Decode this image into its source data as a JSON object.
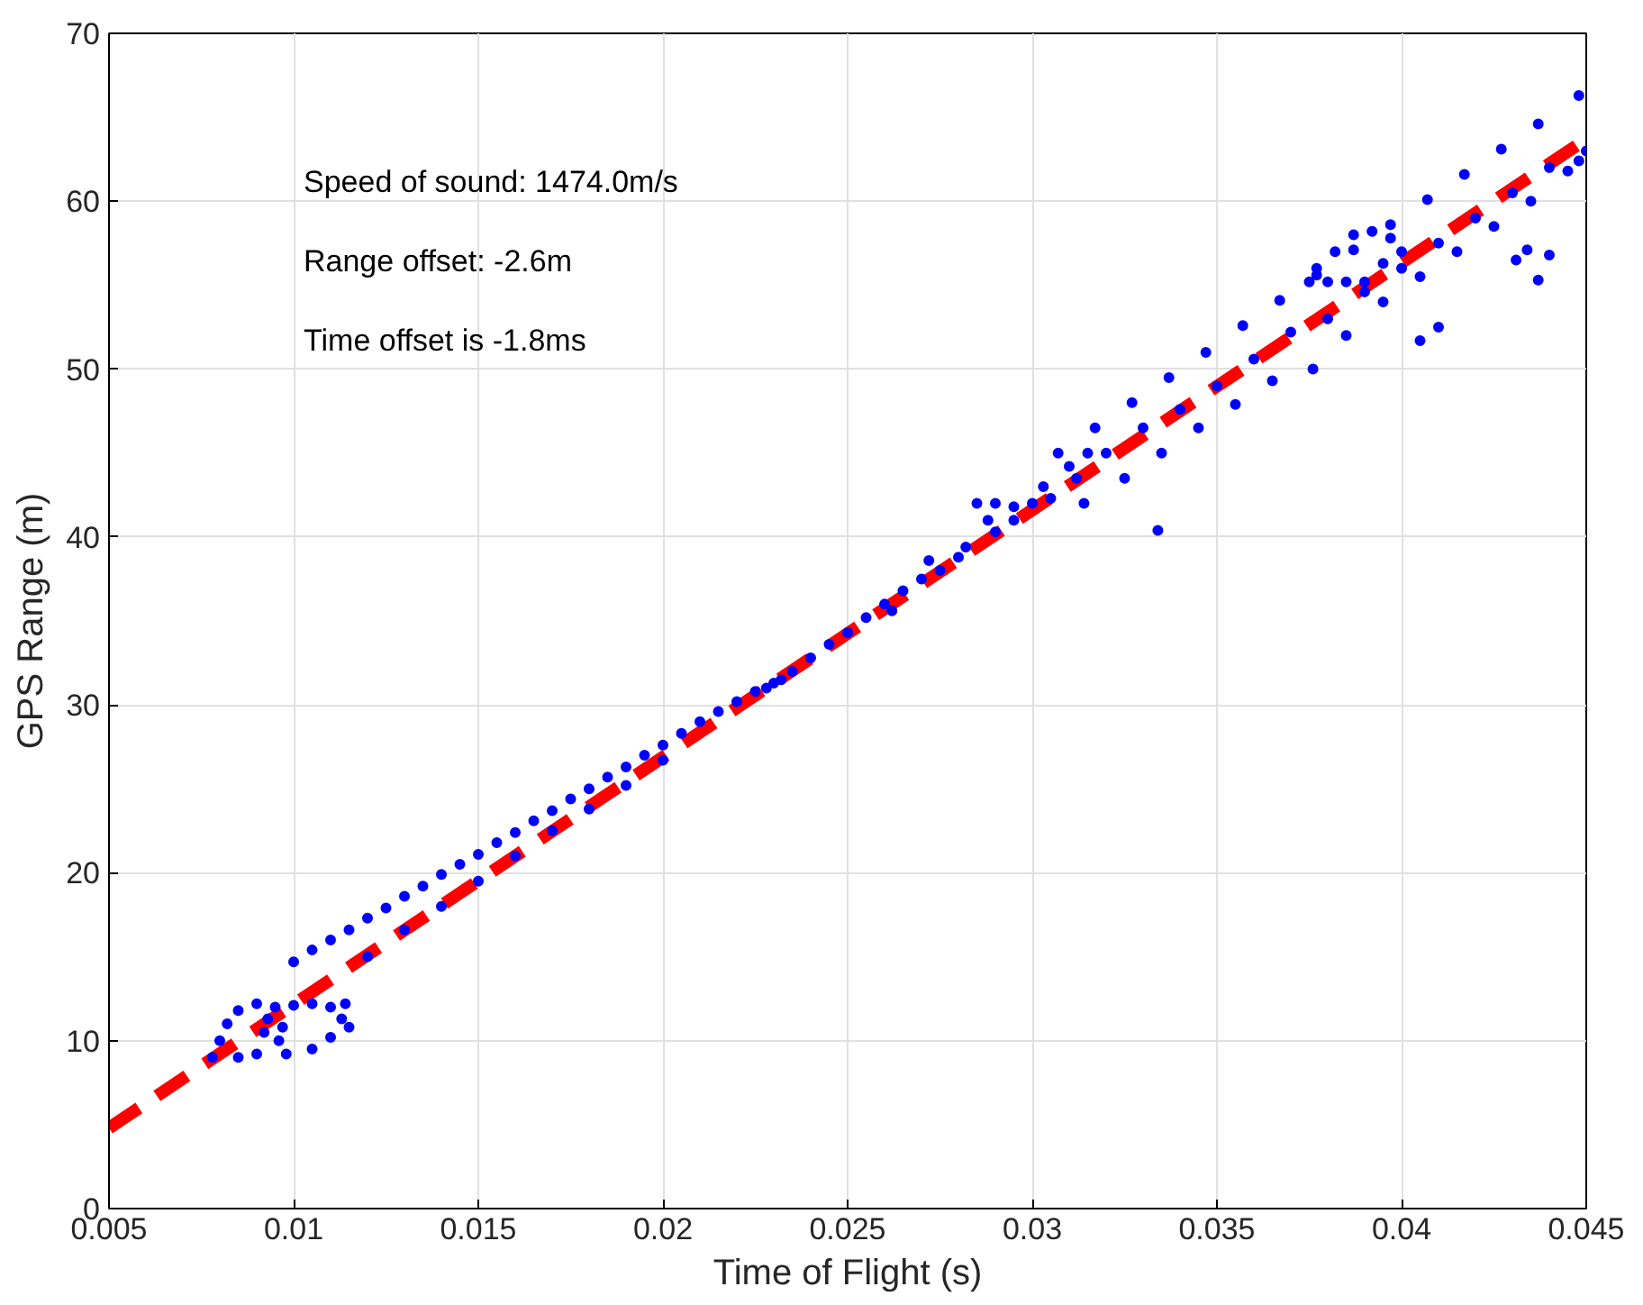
{
  "chart_data": {
    "type": "scatter",
    "xlabel": "Time of Flight (s)",
    "ylabel": "GPS Range (m)",
    "xlim": [
      0.005,
      0.045
    ],
    "xticks": [
      0.005,
      0.01,
      0.015,
      0.02,
      0.025,
      0.03,
      0.035,
      0.04,
      0.045
    ],
    "ylim": [
      0,
      70
    ],
    "yticks": [
      0,
      10,
      20,
      30,
      40,
      50,
      60,
      70
    ],
    "grid": true,
    "marker": "circle",
    "annotations": [
      "Speed of sound: 1474.0m/s",
      "Range offset: -2.6m",
      "Time offset is -1.8ms"
    ],
    "series": [
      {
        "color": "#0000ff",
        "x": [
          0.0078,
          0.008,
          0.0082,
          0.0085,
          0.009,
          0.0095,
          0.01,
          0.0105,
          0.011,
          0.0113,
          0.0115,
          0.011,
          0.0105,
          0.0098,
          0.009,
          0.0085,
          0.0092,
          0.0097,
          0.0093,
          0.0096,
          0.0114,
          0.01,
          0.0105,
          0.011,
          0.0115,
          0.012,
          0.0125,
          0.013,
          0.0135,
          0.014,
          0.0145,
          0.015,
          0.0155,
          0.016,
          0.0165,
          0.017,
          0.0175,
          0.018,
          0.0185,
          0.019,
          0.0195,
          0.02,
          0.0205,
          0.012,
          0.013,
          0.014,
          0.015,
          0.016,
          0.017,
          0.018,
          0.019,
          0.02,
          0.021,
          0.0215,
          0.022,
          0.0225,
          0.0228,
          0.023,
          0.0232,
          0.0235,
          0.024,
          0.0245,
          0.025,
          0.0255,
          0.026,
          0.0262,
          0.0265,
          0.027,
          0.0272,
          0.0275,
          0.028,
          0.0282,
          0.0285,
          0.029,
          0.0295,
          0.0288,
          0.029,
          0.0295,
          0.03,
          0.0303,
          0.0305,
          0.031,
          0.0312,
          0.0315,
          0.0307,
          0.0317,
          0.0327,
          0.0337,
          0.0347,
          0.0357,
          0.0367,
          0.0377,
          0.0387,
          0.0397,
          0.0407,
          0.0417,
          0.0427,
          0.0437,
          0.0448,
          0.0314,
          0.0325,
          0.0335,
          0.0345,
          0.0355,
          0.0365,
          0.0376,
          0.0385,
          0.0395,
          0.0405,
          0.0415,
          0.0425,
          0.0435,
          0.0445,
          0.032,
          0.033,
          0.034,
          0.035,
          0.036,
          0.037,
          0.038,
          0.039,
          0.04,
          0.041,
          0.042,
          0.043,
          0.044,
          0.045,
          0.0448,
          0.0375,
          0.038,
          0.0385,
          0.039,
          0.0377,
          0.0382,
          0.0387,
          0.0392,
          0.0397,
          0.04,
          0.0395,
          0.0334,
          0.0405,
          0.041,
          0.0431,
          0.0434,
          0.044,
          0.0437
        ],
        "values": [
          9.0,
          10.0,
          11.0,
          11.8,
          12.2,
          12.0,
          12.1,
          12.2,
          12.0,
          11.3,
          10.8,
          10.2,
          9.5,
          9.2,
          9.2,
          9.0,
          10.5,
          10.8,
          11.3,
          10.0,
          12.2,
          14.7,
          15.4,
          16.0,
          16.6,
          17.3,
          17.9,
          18.6,
          19.2,
          19.9,
          20.5,
          21.1,
          21.8,
          22.4,
          23.1,
          23.7,
          24.4,
          25.0,
          25.7,
          26.3,
          27.0,
          27.6,
          28.3,
          15.0,
          16.6,
          18.0,
          19.5,
          21.0,
          22.5,
          23.8,
          25.2,
          26.7,
          29.0,
          29.6,
          30.2,
          30.8,
          31.0,
          31.3,
          31.5,
          32.0,
          32.8,
          33.6,
          34.3,
          35.2,
          36.0,
          35.6,
          36.8,
          37.5,
          38.6,
          38.0,
          38.8,
          39.4,
          42.0,
          42.0,
          41.8,
          41.0,
          40.3,
          41.0,
          42.0,
          43.0,
          42.3,
          44.2,
          43.5,
          45.0,
          45.0,
          46.5,
          48.0,
          49.5,
          51.0,
          52.6,
          54.1,
          55.6,
          57.1,
          58.6,
          60.1,
          61.6,
          63.1,
          64.6,
          66.3,
          42.0,
          43.5,
          45.0,
          46.5,
          47.9,
          49.3,
          50.0,
          52.0,
          54.0,
          55.5,
          57.0,
          58.5,
          60.0,
          61.8,
          45.0,
          46.5,
          47.6,
          49.0,
          50.6,
          52.2,
          53.0,
          54.6,
          56.0,
          57.5,
          59.0,
          60.5,
          62.0,
          63.0,
          62.4,
          55.2,
          55.2,
          55.2,
          55.2,
          56.0,
          57.0,
          58.0,
          58.2,
          57.8,
          57.0,
          56.3,
          40.4,
          51.7,
          52.5,
          56.5,
          57.1,
          56.8,
          55.3
        ]
      },
      {
        "type": "line",
        "color": "#ff0000",
        "line_style": "dashed",
        "marker": "none",
        "x": [
          0.005,
          0.045
        ],
        "values": [
          4.8,
          63.7
        ]
      }
    ]
  }
}
